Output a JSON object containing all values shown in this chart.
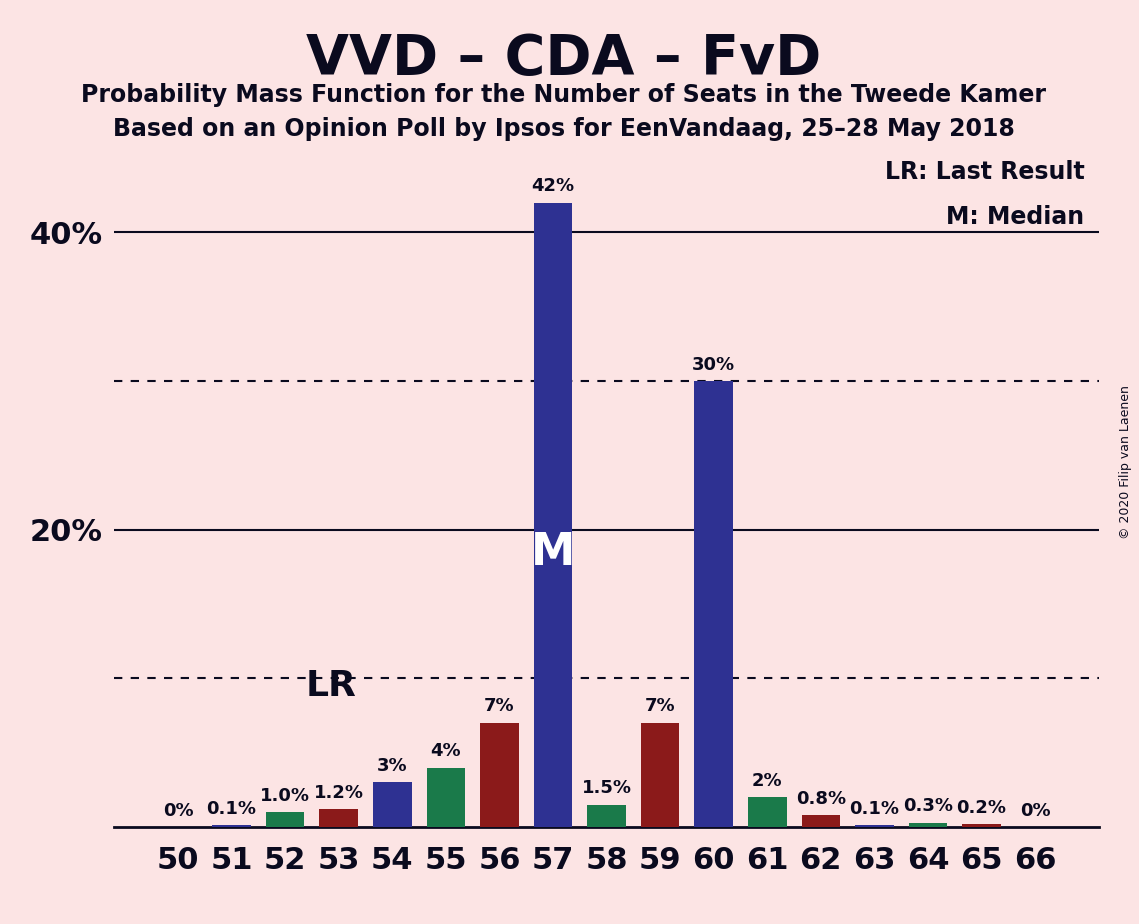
{
  "title": "VVD – CDA – FvD",
  "subtitle1": "Probability Mass Function for the Number of Seats in the Tweede Kamer",
  "subtitle2": "Based on an Opinion Poll by Ipsos for EenVandaag, 25–28 May 2018",
  "copyright": "© 2020 Filip van Laenen",
  "background_color": "#fce4e4",
  "seats": [
    50,
    51,
    52,
    53,
    54,
    55,
    56,
    57,
    58,
    59,
    60,
    61,
    62,
    63,
    64,
    65,
    66
  ],
  "values": [
    0.0,
    0.1,
    1.0,
    1.2,
    3.0,
    4.0,
    7.0,
    42.0,
    1.5,
    7.0,
    30.0,
    2.0,
    0.8,
    0.1,
    0.3,
    0.2,
    0.0
  ],
  "colors": [
    "#2e3192",
    "#2e3192",
    "#1a7a4a",
    "#8b1a1a",
    "#2e3192",
    "#1a7a4a",
    "#8b1a1a",
    "#2e3192",
    "#1a7a4a",
    "#8b1a1a",
    "#2e3192",
    "#1a7a4a",
    "#8b1a1a",
    "#2e3192",
    "#1a7a4a",
    "#8b1a1a",
    "#2e3192"
  ],
  "labels": [
    "0%",
    "0.1%",
    "1.0%",
    "1.2%",
    "3%",
    "4%",
    "7%",
    "42%",
    "1.5%",
    "7%",
    "30%",
    "2%",
    "0.8%",
    "0.1%",
    "0.3%",
    "0.2%",
    "0%"
  ],
  "show_label": [
    true,
    true,
    true,
    true,
    true,
    true,
    true,
    true,
    true,
    true,
    true,
    true,
    true,
    true,
    true,
    true,
    true
  ],
  "median_seat": 57,
  "lr_seat": 54,
  "ylim_max": 46,
  "dotted_hlines": [
    10,
    30
  ],
  "solid_hlines": [
    20,
    40
  ],
  "ytick_vals": [
    20,
    40
  ],
  "ytick_labels": [
    "20%",
    "40%"
  ],
  "axis_color": "#0a0a1e",
  "bar_width": 0.72,
  "title_fontsize": 40,
  "subtitle_fontsize": 17,
  "ytick_fontsize": 22,
  "xtick_fontsize": 22,
  "label_fontsize": 13,
  "lr_fontsize": 26,
  "m_fontsize": 32,
  "legend_fontsize": 17
}
